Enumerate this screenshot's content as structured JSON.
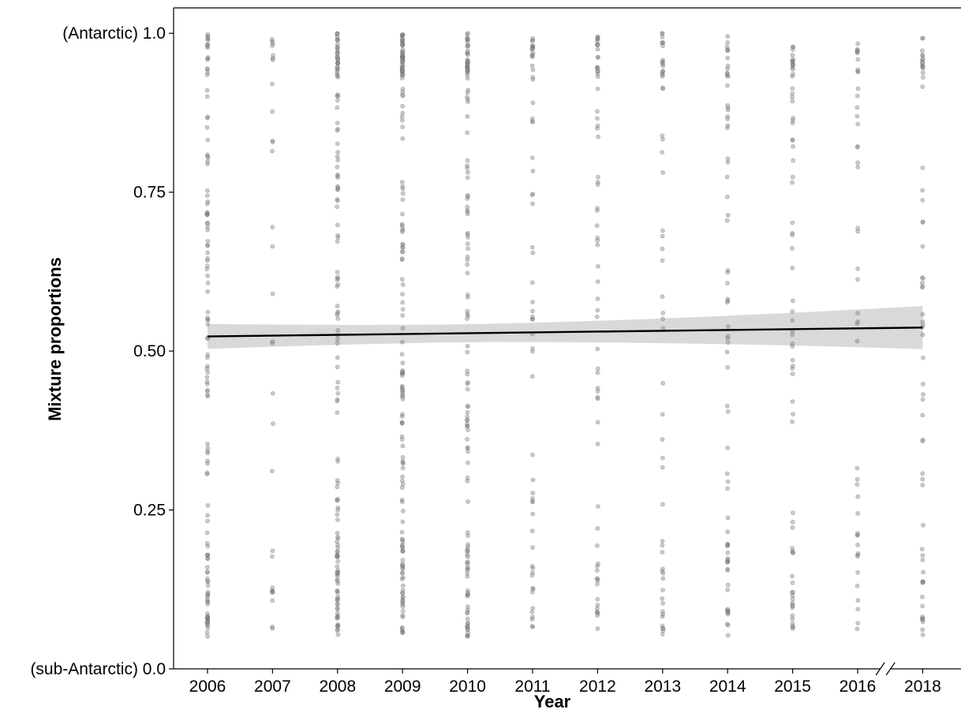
{
  "chart_data": {
    "type": "scatter",
    "title": "",
    "xlabel": "Year",
    "ylabel": "Mixture proportions",
    "x_categories": [
      "2006",
      "2007",
      "2008",
      "2009",
      "2010",
      "2011",
      "2012",
      "2013",
      "2014",
      "2015",
      "2016",
      "2018"
    ],
    "axis_break_between": [
      "2016",
      "2018"
    ],
    "y_ticks": [
      {
        "value": 0.0,
        "label": "(sub-Antarctic) 0.0"
      },
      {
        "value": 0.25,
        "label": "0.25"
      },
      {
        "value": 0.5,
        "label": "0.50"
      },
      {
        "value": 0.75,
        "label": "0.75"
      },
      {
        "value": 1.0,
        "label": "(Antarctic) 1.0"
      }
    ],
    "ylim": [
      0,
      1.04
    ],
    "grid": false,
    "point_color": "#888888",
    "point_density": [
      120,
      30,
      140,
      160,
      130,
      60,
      65,
      55,
      70,
      70,
      45,
      60
    ],
    "point_range": [
      0.05,
      1.0
    ],
    "trend": {
      "x": [
        "2006",
        "2018"
      ],
      "y": [
        0.523,
        0.537
      ],
      "ci_lower": [
        0.493,
        0.503
      ],
      "ci_upper": [
        0.553,
        0.571
      ],
      "line_color": "#000000",
      "band_color": "#d9d9d9"
    }
  }
}
